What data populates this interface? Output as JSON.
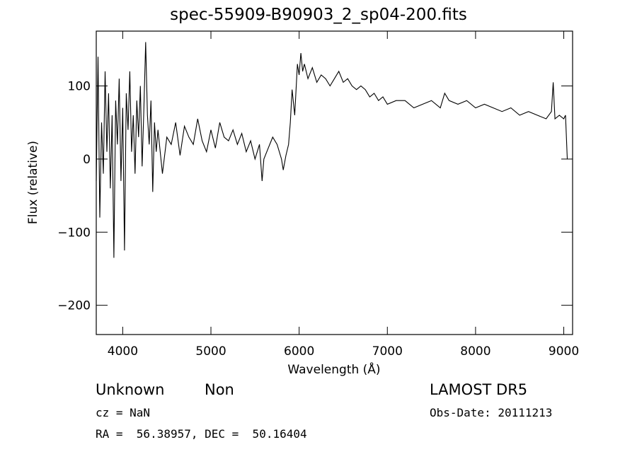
{
  "chart_data": {
    "type": "line",
    "title": "spec-55909-B90903_2_sp04-200.fits",
    "xlabel": "Wavelength (Å)",
    "ylabel": "Flux (relative)",
    "xlim": [
      3700,
      9100
    ],
    "ylim": [
      -240,
      175
    ],
    "x_ticks": [
      4000,
      5000,
      6000,
      7000,
      8000,
      9000
    ],
    "y_ticks": [
      -200,
      -100,
      0,
      100
    ],
    "x_tick_labels": [
      "4000",
      "5000",
      "6000",
      "7000",
      "8000",
      "9000"
    ],
    "y_tick_labels": [
      "-200",
      "-100",
      "0",
      "100"
    ],
    "grid": false,
    "series": [
      {
        "x": [
          3700,
          3720,
          3740,
          3760,
          3780,
          3800,
          3820,
          3840,
          3860,
          3880,
          3900,
          3920,
          3940,
          3960,
          3980,
          4000,
          4020,
          4040,
          4060,
          4080,
          4100,
          4120,
          4140,
          4160,
          4180,
          4200,
          4220,
          4240,
          4260,
          4280,
          4300,
          4320,
          4340,
          4360,
          4380,
          4400,
          4450,
          4500,
          4550,
          4600,
          4650,
          4700,
          4750,
          4800,
          4850,
          4900,
          4950,
          5000,
          5050,
          5100,
          5150,
          5200,
          5250,
          5300,
          5350,
          5400,
          5450,
          5500,
          5550,
          5580,
          5600,
          5650,
          5700,
          5750,
          5800,
          5820,
          5850,
          5880,
          5900,
          5920,
          5950,
          5980,
          6000,
          6020,
          6040,
          6060,
          6100,
          6150,
          6200,
          6250,
          6300,
          6350,
          6400,
          6450,
          6500,
          6550,
          6600,
          6650,
          6700,
          6750,
          6800,
          6850,
          6900,
          6950,
          7000,
          7100,
          7200,
          7300,
          7400,
          7500,
          7600,
          7650,
          7700,
          7800,
          7900,
          8000,
          8100,
          8200,
          8300,
          8400,
          8500,
          8600,
          8700,
          8800,
          8860,
          8880,
          8900,
          8950,
          9000,
          9020,
          9040
        ],
        "y": [
          -30,
          140,
          -80,
          50,
          -20,
          120,
          10,
          90,
          -40,
          60,
          -135,
          80,
          20,
          110,
          -30,
          70,
          -125,
          90,
          40,
          120,
          10,
          60,
          -20,
          80,
          30,
          100,
          -10,
          70,
          160,
          60,
          20,
          80,
          -45,
          50,
          10,
          40,
          -20,
          30,
          20,
          50,
          5,
          45,
          30,
          20,
          55,
          25,
          10,
          40,
          15,
          50,
          30,
          25,
          40,
          20,
          35,
          10,
          25,
          0,
          20,
          -30,
          0,
          15,
          30,
          20,
          0,
          -15,
          5,
          20,
          50,
          95,
          60,
          130,
          115,
          145,
          120,
          130,
          110,
          125,
          105,
          115,
          110,
          100,
          110,
          120,
          105,
          110,
          100,
          95,
          100,
          95,
          85,
          90,
          80,
          85,
          75,
          80,
          80,
          70,
          75,
          80,
          70,
          90,
          80,
          75,
          80,
          70,
          75,
          70,
          65,
          70,
          60,
          65,
          60,
          55,
          65,
          105,
          55,
          60,
          55,
          60,
          0
        ]
      }
    ]
  },
  "footer": {
    "object_class": "Unknown",
    "subclass": "Non",
    "survey": "LAMOST DR5",
    "cz": "cz = NaN",
    "obs_date": "Obs-Date: 20111213",
    "coords": "RA =  56.38957, DEC =  50.16404"
  }
}
